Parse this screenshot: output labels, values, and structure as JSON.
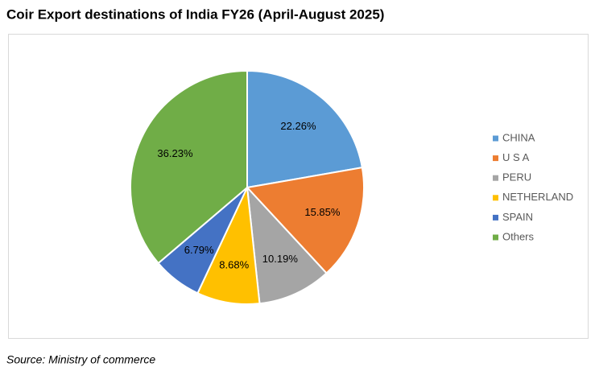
{
  "chart_data": {
    "type": "pie",
    "title": "Coir Export destinations of India FY26 (April-August 2025)",
    "source": "Source: Ministry of commerce",
    "categories": [
      "CHINA",
      "U S A",
      "PERU",
      "NETHERLAND",
      "SPAIN",
      "Others"
    ],
    "values": [
      22.26,
      15.85,
      10.19,
      8.68,
      6.79,
      36.23
    ],
    "value_labels": [
      "22.26%",
      "15.85%",
      "10.19%",
      "8.68%",
      "6.79%",
      "36.23%"
    ],
    "colors": [
      "#5b9bd5",
      "#ed7d31",
      "#a5a5a5",
      "#ffc000",
      "#4472c4",
      "#70ad47"
    ],
    "legend": "right"
  }
}
